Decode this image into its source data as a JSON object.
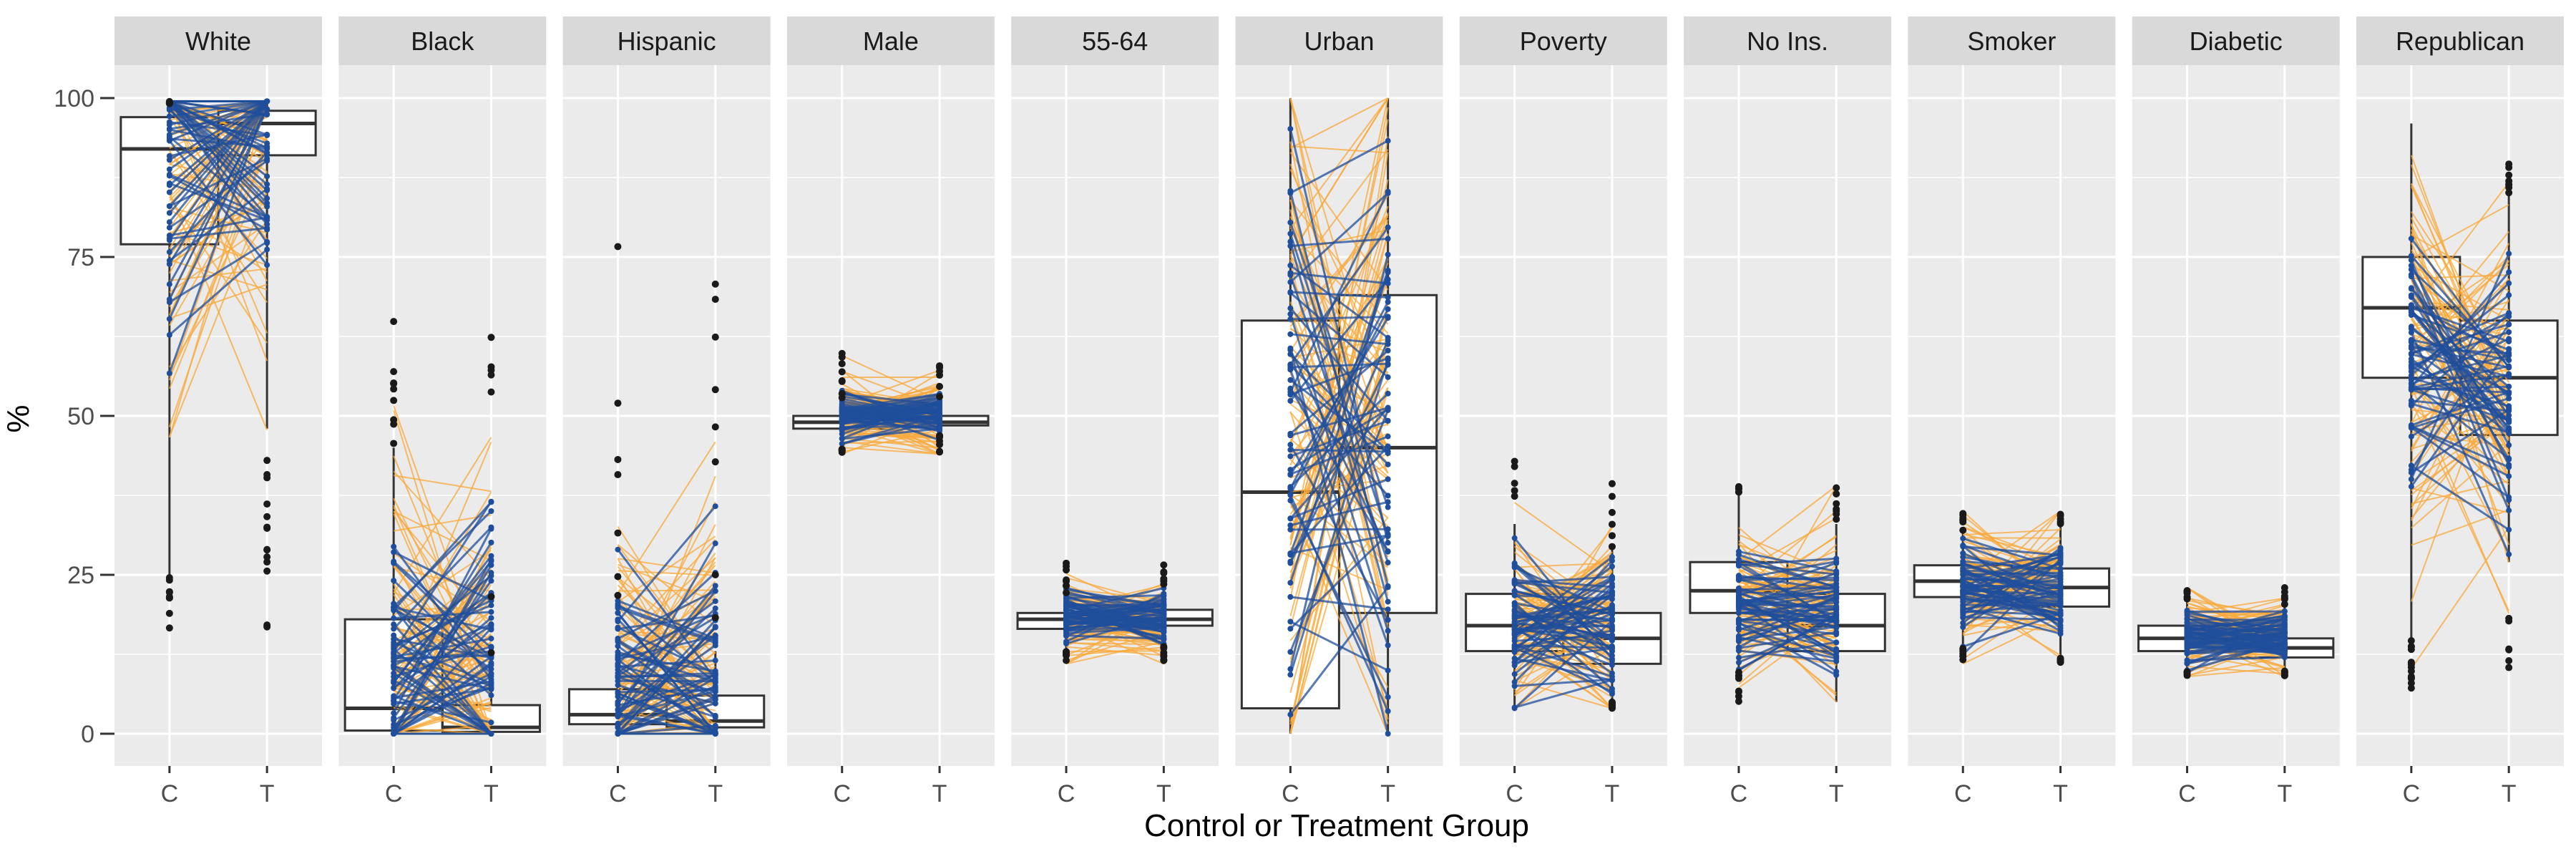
{
  "chart_data": {
    "type": "faceted-boxplot",
    "ylabel": "%",
    "xlabel": "Control or Treatment Group",
    "ylim": [
      -5,
      106
    ],
    "yticks": [
      0,
      25,
      50,
      75,
      100
    ],
    "groups": [
      "C",
      "T"
    ],
    "grid": true,
    "colors": {
      "panel": "#ebebeb",
      "strip": "#d9d9d9",
      "grid": "#ffffff",
      "matched_pair": "#f9a93a",
      "pair_highlight": "#1f4e9c",
      "outlier": "#1a1a1a",
      "box_edge": "#333333"
    },
    "facets": [
      {
        "label": "White",
        "C": {
          "min": 25,
          "q1": 77,
          "med": 92,
          "q3": 97,
          "max": 99
        },
        "T": {
          "min": 48,
          "q1": 91,
          "med": 96,
          "q3": 98,
          "max": 99.5
        },
        "center": [
          92,
          95
        ],
        "spread": [
          22,
          18
        ],
        "pair_range": [
          15,
          99.5
        ]
      },
      {
        "label": "Black",
        "C": {
          "min": 0,
          "q1": 0.5,
          "med": 4,
          "q3": 18,
          "max": 45
        },
        "T": {
          "min": 0,
          "q1": 0.3,
          "med": 1,
          "q3": 4.5,
          "max": 11
        },
        "center": [
          10,
          12
        ],
        "spread": [
          15,
          15
        ],
        "pair_range": [
          0,
          66
        ]
      },
      {
        "label": "Hispanic",
        "C": {
          "min": 0,
          "q1": 1.5,
          "med": 3,
          "q3": 7,
          "max": 15
        },
        "T": {
          "min": 0,
          "q1": 1,
          "med": 2,
          "q3": 6,
          "max": 13
        },
        "center": [
          8,
          10
        ],
        "spread": [
          12,
          12
        ],
        "pair_range": [
          0,
          78
        ]
      },
      {
        "label": "Male",
        "C": {
          "min": 45,
          "q1": 48,
          "med": 49,
          "q3": 50,
          "max": 52
        },
        "T": {
          "min": 47,
          "q1": 48.5,
          "med": 49,
          "q3": 50,
          "max": 52
        },
        "center": [
          50,
          50
        ],
        "spread": [
          3,
          3
        ],
        "pair_range": [
          44,
          60
        ]
      },
      {
        "label": "55-64",
        "C": {
          "min": 13,
          "q1": 16.5,
          "med": 18,
          "q3": 19,
          "max": 22
        },
        "T": {
          "min": 14,
          "q1": 17,
          "med": 18,
          "q3": 19.5,
          "max": 23
        },
        "center": [
          18,
          18
        ],
        "spread": [
          3,
          3
        ],
        "pair_range": [
          11,
          27
        ]
      },
      {
        "label": "Urban",
        "C": {
          "min": 0,
          "q1": 4,
          "med": 38,
          "q3": 65,
          "max": 100
        },
        "T": {
          "min": 0,
          "q1": 19,
          "med": 45,
          "q3": 69,
          "max": 100
        },
        "center": [
          50,
          50
        ],
        "spread": [
          30,
          30
        ],
        "pair_range": [
          0,
          100
        ]
      },
      {
        "label": "Poverty",
        "C": {
          "min": 4,
          "q1": 13,
          "med": 17,
          "q3": 22,
          "max": 33
        },
        "T": {
          "min": 5,
          "q1": 11,
          "med": 15,
          "q3": 19,
          "max": 29
        },
        "center": [
          18,
          17
        ],
        "spread": [
          7,
          7
        ],
        "pair_range": [
          4,
          45
        ]
      },
      {
        "label": "No Ins.",
        "C": {
          "min": 10,
          "q1": 19,
          "med": 22.5,
          "q3": 27,
          "max": 38
        },
        "T": {
          "min": 5,
          "q1": 13,
          "med": 17,
          "q3": 22,
          "max": 33
        },
        "center": [
          20,
          20
        ],
        "spread": [
          6,
          6
        ],
        "pair_range": [
          5,
          39
        ]
      },
      {
        "label": "Smoker",
        "C": {
          "min": 14,
          "q1": 21.5,
          "med": 24,
          "q3": 26.5,
          "max": 32
        },
        "T": {
          "min": 12,
          "q1": 20,
          "med": 23,
          "q3": 26,
          "max": 33
        },
        "center": [
          23,
          23
        ],
        "spread": [
          5,
          5
        ],
        "pair_range": [
          11,
          35
        ]
      },
      {
        "label": "Diabetic",
        "C": {
          "min": 10,
          "q1": 13,
          "med": 15,
          "q3": 17,
          "max": 21
        },
        "T": {
          "min": 10,
          "q1": 12,
          "med": 13.5,
          "q3": 15,
          "max": 20
        },
        "center": [
          15,
          15
        ],
        "spread": [
          3,
          3
        ],
        "pair_range": [
          9,
          23
        ]
      },
      {
        "label": "Republican",
        "C": {
          "min": 15,
          "q1": 56,
          "med": 67,
          "q3": 75,
          "max": 96
        },
        "T": {
          "min": 27,
          "q1": 47,
          "med": 56,
          "q3": 65,
          "max": 85
        },
        "center": [
          60,
          55
        ],
        "spread": [
          15,
          15
        ],
        "pair_range": [
          7,
          91
        ]
      }
    ]
  }
}
